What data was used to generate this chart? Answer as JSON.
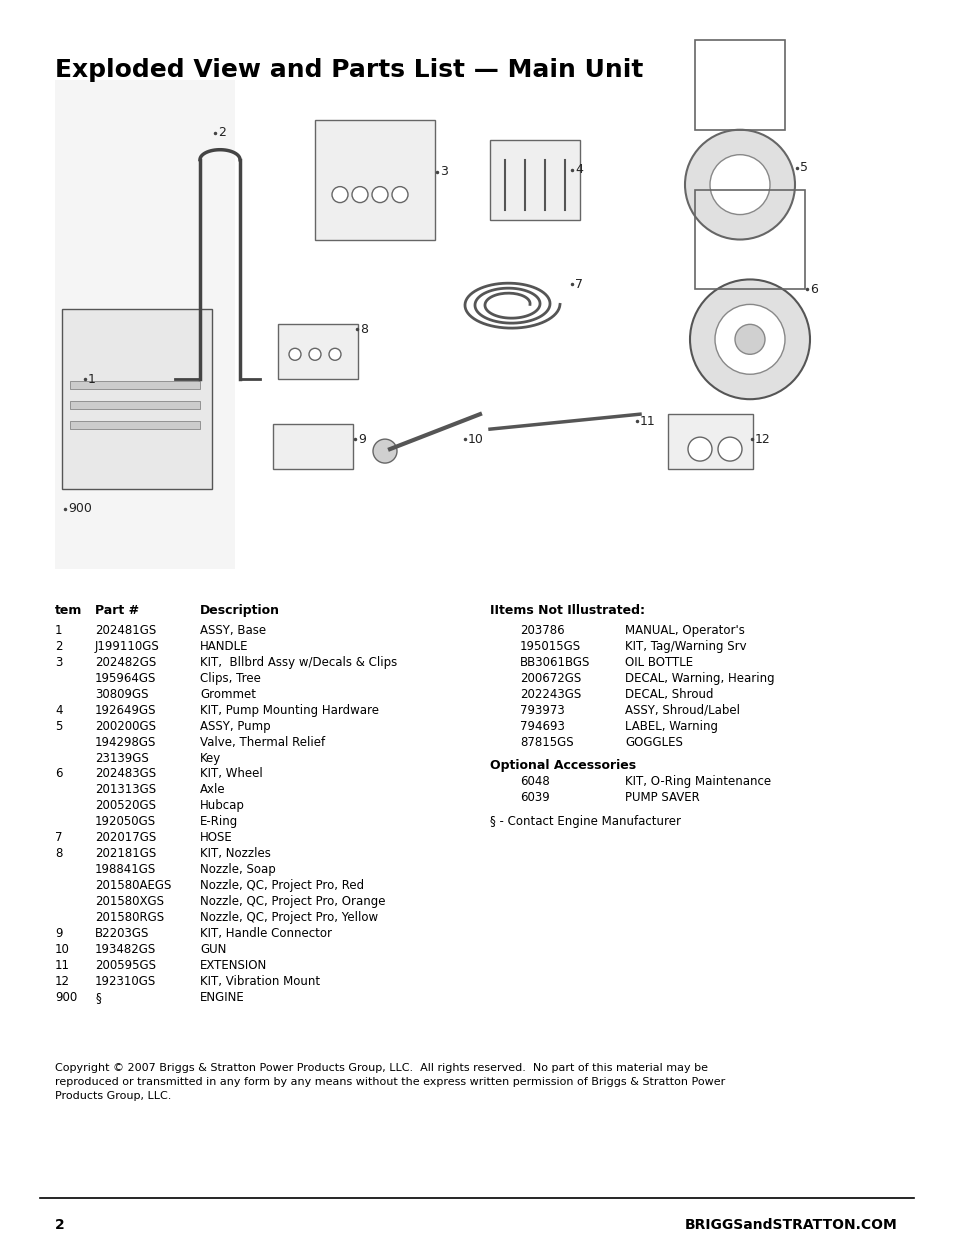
{
  "title": "Exploded View and Parts List — Main Unit",
  "title_fontsize": 18,
  "title_bold": true,
  "background_color": "#ffffff",
  "text_color": "#000000",
  "parts_list_header": [
    "tem",
    "Part #",
    "Description"
  ],
  "parts_list": [
    [
      "1",
      "202481GS",
      "ASSY, Base"
    ],
    [
      "2",
      "J199110GS",
      "HANDLE"
    ],
    [
      "3",
      "202482GS",
      "KIT,  Bllbrd Assy w/Decals & Clips"
    ],
    [
      "",
      "195964GS",
      "Clips, Tree"
    ],
    [
      "",
      "30809GS",
      "Grommet"
    ],
    [
      "4",
      "192649GS",
      "KIT, Pump Mounting Hardware"
    ],
    [
      "5",
      "200200GS",
      "ASSY, Pump"
    ],
    [
      "",
      "194298GS",
      "Valve, Thermal Relief"
    ],
    [
      "",
      "23139GS",
      "Key"
    ],
    [
      "6",
      "202483GS",
      "KIT, Wheel"
    ],
    [
      "",
      "201313GS",
      "Axle"
    ],
    [
      "",
      "200520GS",
      "Hubcap"
    ],
    [
      "",
      "192050GS",
      "E-Ring"
    ],
    [
      "7",
      "202017GS",
      "HOSE"
    ],
    [
      "8",
      "202181GS",
      "KIT, Nozzles"
    ],
    [
      "",
      "198841GS",
      "Nozzle, Soap"
    ],
    [
      "",
      "201580AEGS",
      "Nozzle, QC, Project Pro, Red"
    ],
    [
      "",
      "201580XGS",
      "Nozzle, QC, Project Pro, Orange"
    ],
    [
      "",
      "201580RGS",
      "Nozzle, QC, Project Pro, Yellow"
    ],
    [
      "9",
      "B2203GS",
      "KIT, Handle Connector"
    ],
    [
      "10",
      "193482GS",
      "GUN"
    ],
    [
      "11",
      "200595GS",
      "EXTENSION"
    ],
    [
      "12",
      "192310GS",
      "KIT, Vibration Mount"
    ],
    [
      "900",
      "§",
      "ENGINE"
    ]
  ],
  "not_illustrated_header": "IItems Not Illustrated:",
  "not_illustrated": [
    [
      "203786",
      "MANUAL, Operator's"
    ],
    [
      "195015GS",
      "KIT, Tag/Warning Srv"
    ],
    [
      "BB3061BGS",
      "OIL BOTTLE"
    ],
    [
      "200672GS",
      "DECAL, Warning, Hearing"
    ],
    [
      "202243GS",
      "DECAL, Shroud"
    ],
    [
      "793973",
      "ASSY, Shroud/Label"
    ],
    [
      "794693",
      "LABEL, Warning"
    ],
    [
      "87815GS",
      "GOGGLES"
    ]
  ],
  "optional_header": "Optional Accessories",
  "optional": [
    [
      "6048",
      "KIT, O-Ring Maintenance"
    ],
    [
      "6039",
      "PUMP SAVER"
    ]
  ],
  "contact_note": "§ - Contact Engine Manufacturer",
  "copyright": "Copyright © 2007 Briggs & Stratton Power Products Group, LLC.  All rights reserved.  No part of this material may be\nreproduced or transmitted in any form by any means without the express written permission of Briggs & Stratton Power\nProducts Group, LLC.",
  "page_number": "2",
  "website": "BRIGGSandSTRATTON.COM",
  "diagram_placeholder": true
}
